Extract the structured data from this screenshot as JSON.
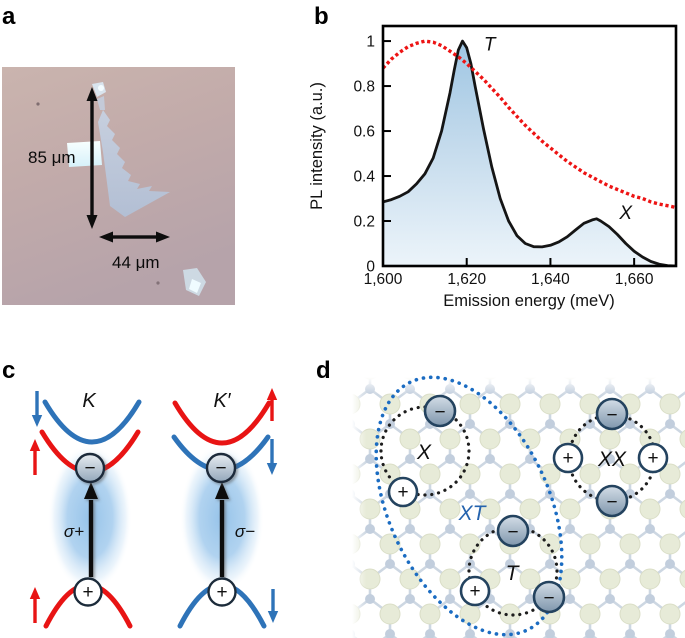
{
  "panel_labels": {
    "a": "a",
    "b": "b",
    "c": "c",
    "d": "d"
  },
  "panel_a": {
    "vertical_measure": "85 μm",
    "horizontal_measure": "44 μm"
  },
  "chart_data": {
    "type": "line",
    "title": "",
    "xlabel": "Emission energy (meV)",
    "ylabel": "PL intensity (a.u.)",
    "x_range": [
      1600,
      1670
    ],
    "y_range": [
      0,
      1.067
    ],
    "grid": false,
    "legend": "none",
    "x_ticks": {
      "values": [
        1600,
        1620,
        1640,
        1660
      ],
      "labels": [
        "1,600",
        "1,620",
        "1,640",
        "1,660"
      ]
    },
    "y_ticks": {
      "values": [
        0,
        0.2,
        0.4,
        0.6,
        0.8,
        1
      ],
      "labels": [
        "0",
        "0.2",
        "0.4",
        "0.6",
        "0.8",
        "1"
      ]
    },
    "series": [
      {
        "name": "black_solid_shaded",
        "color": "#151515",
        "style": "solid",
        "fill": "blue-gradient",
        "points": [
          [
            1600,
            0.285
          ],
          [
            1602,
            0.295
          ],
          [
            1604,
            0.31
          ],
          [
            1606,
            0.33
          ],
          [
            1608,
            0.365
          ],
          [
            1610,
            0.41
          ],
          [
            1612,
            0.48
          ],
          [
            1614,
            0.6
          ],
          [
            1616,
            0.77
          ],
          [
            1617,
            0.87
          ],
          [
            1618,
            0.96
          ],
          [
            1619,
            1.0
          ],
          [
            1620,
            0.97
          ],
          [
            1621,
            0.9
          ],
          [
            1622,
            0.8
          ],
          [
            1624,
            0.61
          ],
          [
            1626,
            0.44
          ],
          [
            1628,
            0.3
          ],
          [
            1630,
            0.2
          ],
          [
            1632,
            0.135
          ],
          [
            1634,
            0.1
          ],
          [
            1636,
            0.086
          ],
          [
            1638,
            0.085
          ],
          [
            1640,
            0.092
          ],
          [
            1642,
            0.107
          ],
          [
            1644,
            0.13
          ],
          [
            1646,
            0.16
          ],
          [
            1648,
            0.19
          ],
          [
            1650,
            0.205
          ],
          [
            1651,
            0.21
          ],
          [
            1652,
            0.2
          ],
          [
            1654,
            0.175
          ],
          [
            1656,
            0.14
          ],
          [
            1658,
            0.1
          ],
          [
            1660,
            0.066
          ],
          [
            1662,
            0.04
          ],
          [
            1664,
            0.02
          ],
          [
            1666,
            0.008
          ],
          [
            1668,
            0.002
          ],
          [
            1670,
            0.0
          ]
        ]
      },
      {
        "name": "red_dashed",
        "color": "#ed1414",
        "style": "dashed",
        "points": [
          [
            1600,
            0.88
          ],
          [
            1602,
            0.92
          ],
          [
            1604,
            0.95
          ],
          [
            1606,
            0.975
          ],
          [
            1608,
            0.99
          ],
          [
            1610,
            1.0
          ],
          [
            1612,
            0.995
          ],
          [
            1614,
            0.98
          ],
          [
            1616,
            0.955
          ],
          [
            1618,
            0.93
          ],
          [
            1620,
            0.9
          ],
          [
            1622,
            0.865
          ],
          [
            1624,
            0.83
          ],
          [
            1626,
            0.79
          ],
          [
            1628,
            0.75
          ],
          [
            1630,
            0.705
          ],
          [
            1632,
            0.665
          ],
          [
            1634,
            0.625
          ],
          [
            1636,
            0.59
          ],
          [
            1638,
            0.555
          ],
          [
            1640,
            0.525
          ],
          [
            1642,
            0.495
          ],
          [
            1644,
            0.465
          ],
          [
            1646,
            0.44
          ],
          [
            1648,
            0.415
          ],
          [
            1650,
            0.395
          ],
          [
            1652,
            0.375
          ],
          [
            1654,
            0.355
          ],
          [
            1656,
            0.34
          ],
          [
            1658,
            0.325
          ],
          [
            1660,
            0.31
          ],
          [
            1662,
            0.3
          ],
          [
            1664,
            0.285
          ],
          [
            1666,
            0.275
          ],
          [
            1668,
            0.268
          ],
          [
            1670,
            0.26
          ]
        ]
      }
    ],
    "annotations": [
      {
        "text": "T",
        "x": 1625.5,
        "y": 0.985
      },
      {
        "text": "X",
        "x": 1658.0,
        "y": 0.235
      }
    ]
  },
  "panel_c": {
    "valley_left": "K",
    "valley_right": "K′",
    "transition_left": "σ+",
    "transition_right": "σ−",
    "electron_symbol": "−",
    "hole_symbol": "+",
    "spin_up_color": "#e81414",
    "spin_down_color": "#2e73b8"
  },
  "panel_d": {
    "exciton_label": "X",
    "trion_label": "T",
    "biexciton_label": "XX",
    "exciton_trion_label": "XT",
    "electron_symbol": "−",
    "hole_symbol": "+",
    "highlight_color": "#1b6cc2"
  }
}
